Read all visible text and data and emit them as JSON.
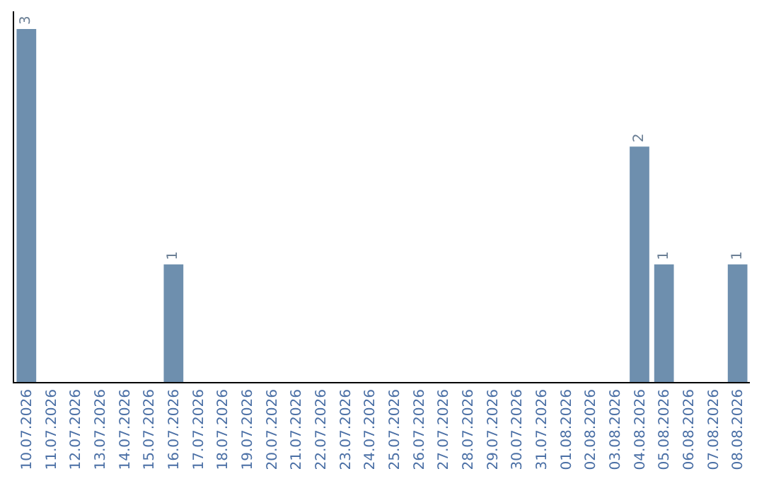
{
  "chart_data": {
    "type": "bar",
    "categories": [
      "10.07.2026",
      "11.07.2026",
      "12.07.2026",
      "13.07.2026",
      "14.07.2026",
      "15.07.2026",
      "16.07.2026",
      "17.07.2026",
      "18.07.2026",
      "19.07.2026",
      "20.07.2026",
      "21.07.2026",
      "22.07.2026",
      "23.07.2026",
      "24.07.2026",
      "25.07.2026",
      "26.07.2026",
      "27.07.2026",
      "28.07.2026",
      "29.07.2026",
      "30.07.2026",
      "31.07.2026",
      "01.08.2026",
      "02.08.2026",
      "03.08.2026",
      "04.08.2026",
      "05.08.2026",
      "06.08.2026",
      "07.08.2026",
      "08.08.2026"
    ],
    "values": [
      3,
      0,
      0,
      0,
      0,
      0,
      1,
      0,
      0,
      0,
      0,
      0,
      0,
      0,
      0,
      0,
      0,
      0,
      0,
      0,
      0,
      0,
      0,
      0,
      0,
      2,
      1,
      0,
      0,
      1
    ],
    "value_labels": [
      "3",
      null,
      null,
      null,
      null,
      null,
      "1",
      null,
      null,
      null,
      null,
      null,
      null,
      null,
      null,
      null,
      null,
      null,
      null,
      null,
      null,
      null,
      null,
      null,
      null,
      "2",
      "1",
      null,
      null,
      "1"
    ],
    "color": "#6e8fae",
    "ylim": [
      0,
      3.15
    ],
    "tick_labels": "x"
  }
}
